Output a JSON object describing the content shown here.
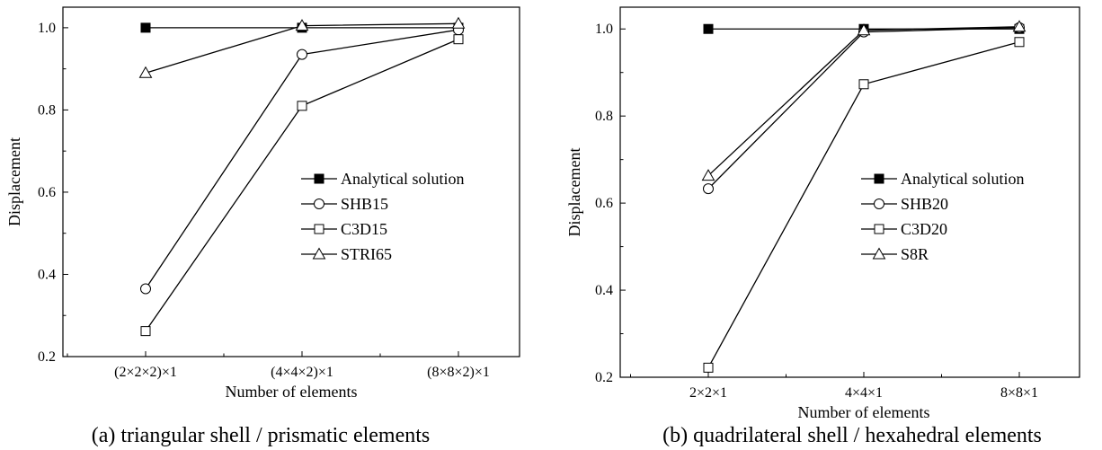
{
  "chart_data": [
    {
      "type": "line",
      "categories": [
        "(2×2×2)×1",
        "(4×4×2)×1",
        "(8×8×2)×1"
      ],
      "xlabel": "Number of elements",
      "ylabel": "Displacement",
      "ylim": [
        0.2,
        1.05
      ],
      "yticks": [
        "0.2",
        "0.4",
        "0.6",
        "0.8",
        "1.0"
      ],
      "caption": "(a) triangular shell / prismatic elements",
      "legend_position": "center-right",
      "grid": false,
      "series": [
        {
          "name": "Analytical solution",
          "marker": "filled-square",
          "values": [
            1.0,
            1.0,
            1.0
          ]
        },
        {
          "name": "SHB15",
          "marker": "circle",
          "values": [
            0.365,
            0.935,
            0.995
          ]
        },
        {
          "name": "C3D15",
          "marker": "square",
          "values": [
            0.262,
            0.81,
            0.972
          ]
        },
        {
          "name": "STRI65",
          "marker": "triangle",
          "values": [
            0.89,
            1.005,
            1.01
          ]
        }
      ]
    },
    {
      "type": "line",
      "categories": [
        "2×2×1",
        "4×4×1",
        "8×8×1"
      ],
      "xlabel": "Number of elements",
      "ylabel": "Displacement",
      "ylim": [
        0.2,
        1.05
      ],
      "yticks": [
        "0.2",
        "0.4",
        "0.6",
        "0.8",
        "1.0"
      ],
      "caption": "(b) quadrilateral shell / hexahedral elements",
      "legend_position": "center-right",
      "grid": false,
      "series": [
        {
          "name": "Analytical solution",
          "marker": "filled-square",
          "values": [
            1.0,
            1.0,
            1.0
          ]
        },
        {
          "name": "SHB20",
          "marker": "circle",
          "values": [
            0.633,
            0.993,
            1.003
          ]
        },
        {
          "name": "C3D20",
          "marker": "square",
          "values": [
            0.222,
            0.873,
            0.97
          ]
        },
        {
          "name": "S8R",
          "marker": "triangle",
          "values": [
            0.663,
            0.997,
            1.005
          ]
        }
      ]
    }
  ]
}
